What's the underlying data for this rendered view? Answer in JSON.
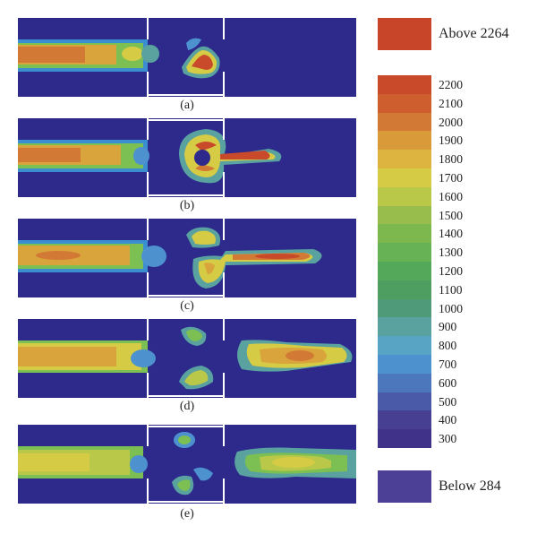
{
  "panels": [
    {
      "label": "(a)"
    },
    {
      "label": "(b)"
    },
    {
      "label": "(c)"
    },
    {
      "label": "(d)"
    },
    {
      "label": "(e)"
    }
  ],
  "legend": {
    "above": {
      "label": "Above 2264",
      "color": "#c8452a"
    },
    "below": {
      "label": "Below 284",
      "color": "#4b3f96"
    },
    "scale": [
      {
        "value": "2200",
        "color": "#c84a2a"
      },
      {
        "value": "2100",
        "color": "#cf5e2e"
      },
      {
        "value": "2000",
        "color": "#d27a35"
      },
      {
        "value": "1900",
        "color": "#d99a3a"
      },
      {
        "value": "1800",
        "color": "#dcb43f"
      },
      {
        "value": "1700",
        "color": "#d6cb45"
      },
      {
        "value": "1600",
        "color": "#b9c849"
      },
      {
        "value": "1500",
        "color": "#98bd4c"
      },
      {
        "value": "1400",
        "color": "#7db84f"
      },
      {
        "value": "1300",
        "color": "#67b254"
      },
      {
        "value": "1200",
        "color": "#54a85a"
      },
      {
        "value": "1100",
        "color": "#4d9e60"
      },
      {
        "value": "1000",
        "color": "#4f9a78"
      },
      {
        "value": "900",
        "color": "#5aa2a0"
      },
      {
        "value": "800",
        "color": "#58a4c4"
      },
      {
        "value": "700",
        "color": "#4d92cf"
      },
      {
        "value": "600",
        "color": "#4d77bd"
      },
      {
        "value": "500",
        "color": "#4a5aa8"
      },
      {
        "value": "400",
        "color": "#463f92"
      },
      {
        "value": "300",
        "color": "#3f3288"
      }
    ]
  },
  "colors": {
    "background": "#2d2a8c",
    "channel_outline": "#ffffff"
  }
}
